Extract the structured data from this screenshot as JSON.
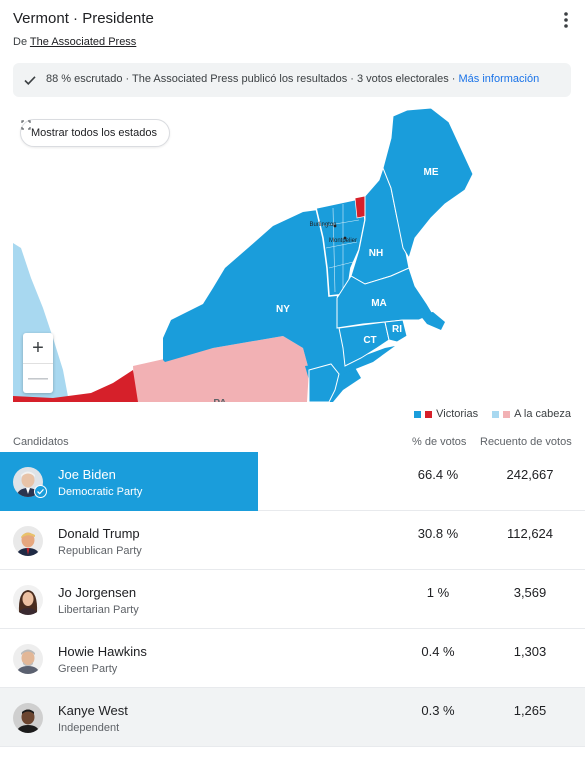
{
  "header": {
    "title": "Vermont · Presidente",
    "source_prefix": "De",
    "source_name": "The Associated Press"
  },
  "status": {
    "text": "88 % escrutado · The Associated Press publicó los resultados · 3 votos electorales · ",
    "link": "Más información"
  },
  "map": {
    "show_all_label": "Mostrar todos los estados",
    "zoom_in": "+",
    "zoom_out": "—",
    "state_labels": {
      "me": "ME",
      "nh": "NH",
      "ny": "NY",
      "ma": "MA",
      "ct": "CT",
      "ri": "RI",
      "pa": "PA"
    },
    "city_labels": {
      "burlington": "Burlington",
      "montpelier": "Montpelier"
    },
    "colors": {
      "dem_win": "#1a9ddb",
      "dem_lead": "#a8d8f0",
      "rep_win": "#d6202a",
      "rep_lead": "#f2b1b4",
      "vermont_outline": "#ffffff"
    }
  },
  "legend": {
    "won_label": "Victorias",
    "lead_label": "A la cabeza"
  },
  "table": {
    "headers": {
      "candidates": "Candidatos",
      "percent": "% de votos",
      "count": "Recuento de votos"
    },
    "rows": [
      {
        "name": "Joe Biden",
        "party": "Democratic Party",
        "percent": "66.4 %",
        "votes": "242,667",
        "winner": true
      },
      {
        "name": "Donald Trump",
        "party": "Republican Party",
        "percent": "30.8 %",
        "votes": "112,624",
        "winner": false
      },
      {
        "name": "Jo Jorgensen",
        "party": "Libertarian Party",
        "percent": "1 %",
        "votes": "3,569",
        "winner": false
      },
      {
        "name": "Howie Hawkins",
        "party": "Green Party",
        "percent": "0.4 %",
        "votes": "1,303",
        "winner": false
      },
      {
        "name": "Kanye West",
        "party": "Independent",
        "percent": "0.3 %",
        "votes": "1,265",
        "winner": false
      }
    ]
  }
}
